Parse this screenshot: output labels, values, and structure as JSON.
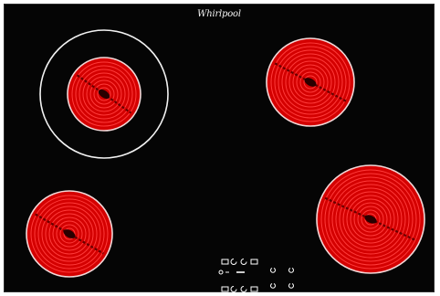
{
  "brand": {
    "logo_text": "Whirlpool",
    "logo_color": "#f2f2f2"
  },
  "hob": {
    "surface_color": "#050505",
    "zone_color": "#d40000",
    "zone_ring_color": "#ff3b3b",
    "zone_rim_color": "#f3d7d7",
    "zones": [
      {
        "name": "top-left",
        "extended_ring": true
      },
      {
        "name": "top-right",
        "extended_ring": false
      },
      {
        "name": "bottom-left",
        "extended_ring": false
      },
      {
        "name": "bottom-right",
        "extended_ring": false
      }
    ]
  },
  "controls": {
    "icon_color": "#ffffff",
    "items": [
      "timer-icon",
      "power-icon",
      "lock-icon",
      "plus-icon",
      "minus-icon"
    ]
  }
}
